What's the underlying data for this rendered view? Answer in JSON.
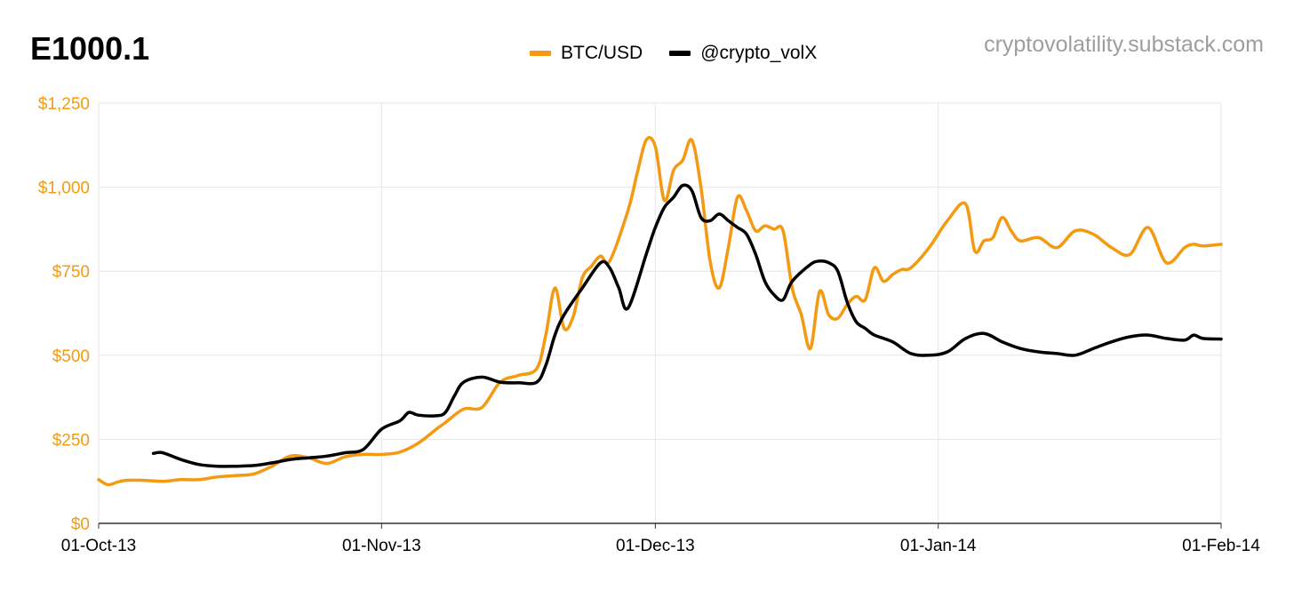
{
  "title": "E1000.1",
  "source_label": "cryptovolatility.substack.com",
  "colors": {
    "btc": "#f39a12",
    "volx": "#000000",
    "grid": "#e6e6e6",
    "ytick": "#f39a12"
  },
  "chart_data": {
    "type": "line",
    "title": "E1000.1",
    "xlabel": "",
    "ylabel": "",
    "xlim": [
      "2013-10-01",
      "2014-02-01"
    ],
    "ylim": [
      0,
      1250
    ],
    "y_ticks": [
      0,
      250,
      500,
      750,
      1000,
      1250
    ],
    "y_tick_labels": [
      "$0",
      "$250",
      "$500",
      "$750",
      "$1,000",
      "$1,250"
    ],
    "x_ticks": [
      "2013-10-01",
      "2013-11-01",
      "2013-12-01",
      "2014-01-01",
      "2014-02-01"
    ],
    "x_tick_labels": [
      "01-Oct-13",
      "01-Nov-13",
      "01-Dec-13",
      "01-Jan-14",
      "01-Feb-14"
    ],
    "grid": true,
    "legend_position": "top-center",
    "series": [
      {
        "name": "BTC/USD",
        "color": "#f39a12",
        "x": [
          "2013-10-01",
          "2013-10-02",
          "2013-10-03",
          "2013-10-04",
          "2013-10-06",
          "2013-10-08",
          "2013-10-10",
          "2013-10-12",
          "2013-10-14",
          "2013-10-16",
          "2013-10-18",
          "2013-10-20",
          "2013-10-22",
          "2013-10-24",
          "2013-10-26",
          "2013-10-28",
          "2013-10-30",
          "2013-11-01",
          "2013-11-03",
          "2013-11-05",
          "2013-11-07",
          "2013-11-08",
          "2013-11-10",
          "2013-11-12",
          "2013-11-14",
          "2013-11-16",
          "2013-11-18",
          "2013-11-19",
          "2013-11-20",
          "2013-11-21",
          "2013-11-22",
          "2013-11-23",
          "2013-11-24",
          "2013-11-25",
          "2013-11-26",
          "2013-11-28",
          "2013-11-29",
          "2013-11-30",
          "2013-12-01",
          "2013-12-02",
          "2013-12-03",
          "2013-12-04",
          "2013-12-05",
          "2013-12-06",
          "2013-12-07",
          "2013-12-08",
          "2013-12-09",
          "2013-12-10",
          "2013-12-11",
          "2013-12-12",
          "2013-12-13",
          "2013-12-14",
          "2013-12-15",
          "2013-12-16",
          "2013-12-17",
          "2013-12-18",
          "2013-12-19",
          "2013-12-20",
          "2013-12-21",
          "2013-12-22",
          "2013-12-23",
          "2013-12-24",
          "2013-12-25",
          "2013-12-26",
          "2013-12-27",
          "2013-12-28",
          "2013-12-29",
          "2013-12-31",
          "2014-01-02",
          "2014-01-04",
          "2014-01-05",
          "2014-01-06",
          "2014-01-07",
          "2014-01-08",
          "2014-01-09",
          "2014-01-10",
          "2014-01-12",
          "2014-01-14",
          "2014-01-16",
          "2014-01-18",
          "2014-01-20",
          "2014-01-22",
          "2014-01-24",
          "2014-01-26",
          "2014-01-28",
          "2014-01-29",
          "2014-01-30",
          "2014-02-01"
        ],
        "values": [
          130,
          115,
          122,
          128,
          128,
          125,
          130,
          130,
          138,
          142,
          147,
          170,
          200,
          195,
          178,
          198,
          205,
          205,
          212,
          238,
          280,
          300,
          340,
          345,
          420,
          440,
          460,
          560,
          700,
          580,
          615,
          730,
          765,
          795,
          780,
          930,
          1040,
          1140,
          1120,
          960,
          1050,
          1080,
          1140,
          1000,
          780,
          700,
          820,
          970,
          930,
          870,
          885,
          875,
          870,
          700,
          620,
          520,
          690,
          620,
          610,
          650,
          675,
          665,
          760,
          720,
          740,
          755,
          760,
          820,
          900,
          950,
          810,
          840,
          850,
          910,
          870,
          840,
          850,
          820,
          870,
          860,
          820,
          800,
          880,
          775,
          820,
          830,
          825,
          830
        ]
      },
      {
        "name": "@crypto_volX",
        "color": "#000000",
        "x": [
          "2013-10-07",
          "2013-10-08",
          "2013-10-10",
          "2013-10-12",
          "2013-10-14",
          "2013-10-16",
          "2013-10-18",
          "2013-10-20",
          "2013-10-22",
          "2013-10-24",
          "2013-10-26",
          "2013-10-28",
          "2013-10-30",
          "2013-11-01",
          "2013-11-03",
          "2013-11-04",
          "2013-11-05",
          "2013-11-07",
          "2013-11-08",
          "2013-11-09",
          "2013-11-10",
          "2013-11-12",
          "2013-11-14",
          "2013-11-16",
          "2013-11-18",
          "2013-11-19",
          "2013-11-20",
          "2013-11-21",
          "2013-11-23",
          "2013-11-25",
          "2013-11-26",
          "2013-11-27",
          "2013-11-28",
          "2013-11-30",
          "2013-12-01",
          "2013-12-02",
          "2013-12-03",
          "2013-12-04",
          "2013-12-05",
          "2013-12-06",
          "2013-12-07",
          "2013-12-08",
          "2013-12-09",
          "2013-12-10",
          "2013-12-11",
          "2013-12-12",
          "2013-12-13",
          "2013-12-14",
          "2013-12-15",
          "2013-12-16",
          "2013-12-18",
          "2013-12-19",
          "2013-12-20",
          "2013-12-21",
          "2013-12-22",
          "2013-12-23",
          "2013-12-24",
          "2013-12-25",
          "2013-12-27",
          "2013-12-29",
          "2013-12-31",
          "2014-01-02",
          "2014-01-04",
          "2014-01-06",
          "2014-01-08",
          "2014-01-10",
          "2014-01-12",
          "2014-01-14",
          "2014-01-16",
          "2014-01-18",
          "2014-01-20",
          "2014-01-22",
          "2014-01-24",
          "2014-01-26",
          "2014-01-28",
          "2014-01-29",
          "2014-01-30",
          "2014-02-01"
        ],
        "values": [
          208,
          210,
          190,
          175,
          170,
          170,
          172,
          180,
          190,
          195,
          200,
          210,
          220,
          280,
          305,
          330,
          322,
          320,
          330,
          380,
          420,
          435,
          420,
          418,
          420,
          470,
          560,
          620,
          700,
          775,
          760,
          700,
          640,
          800,
          880,
          940,
          970,
          1005,
          990,
          910,
          900,
          920,
          900,
          880,
          860,
          800,
          720,
          680,
          665,
          720,
          770,
          780,
          775,
          750,
          660,
          600,
          580,
          560,
          540,
          505,
          500,
          510,
          550,
          565,
          540,
          520,
          510,
          505,
          500,
          520,
          540,
          555,
          560,
          550,
          545,
          560,
          550,
          548
        ]
      }
    ]
  }
}
